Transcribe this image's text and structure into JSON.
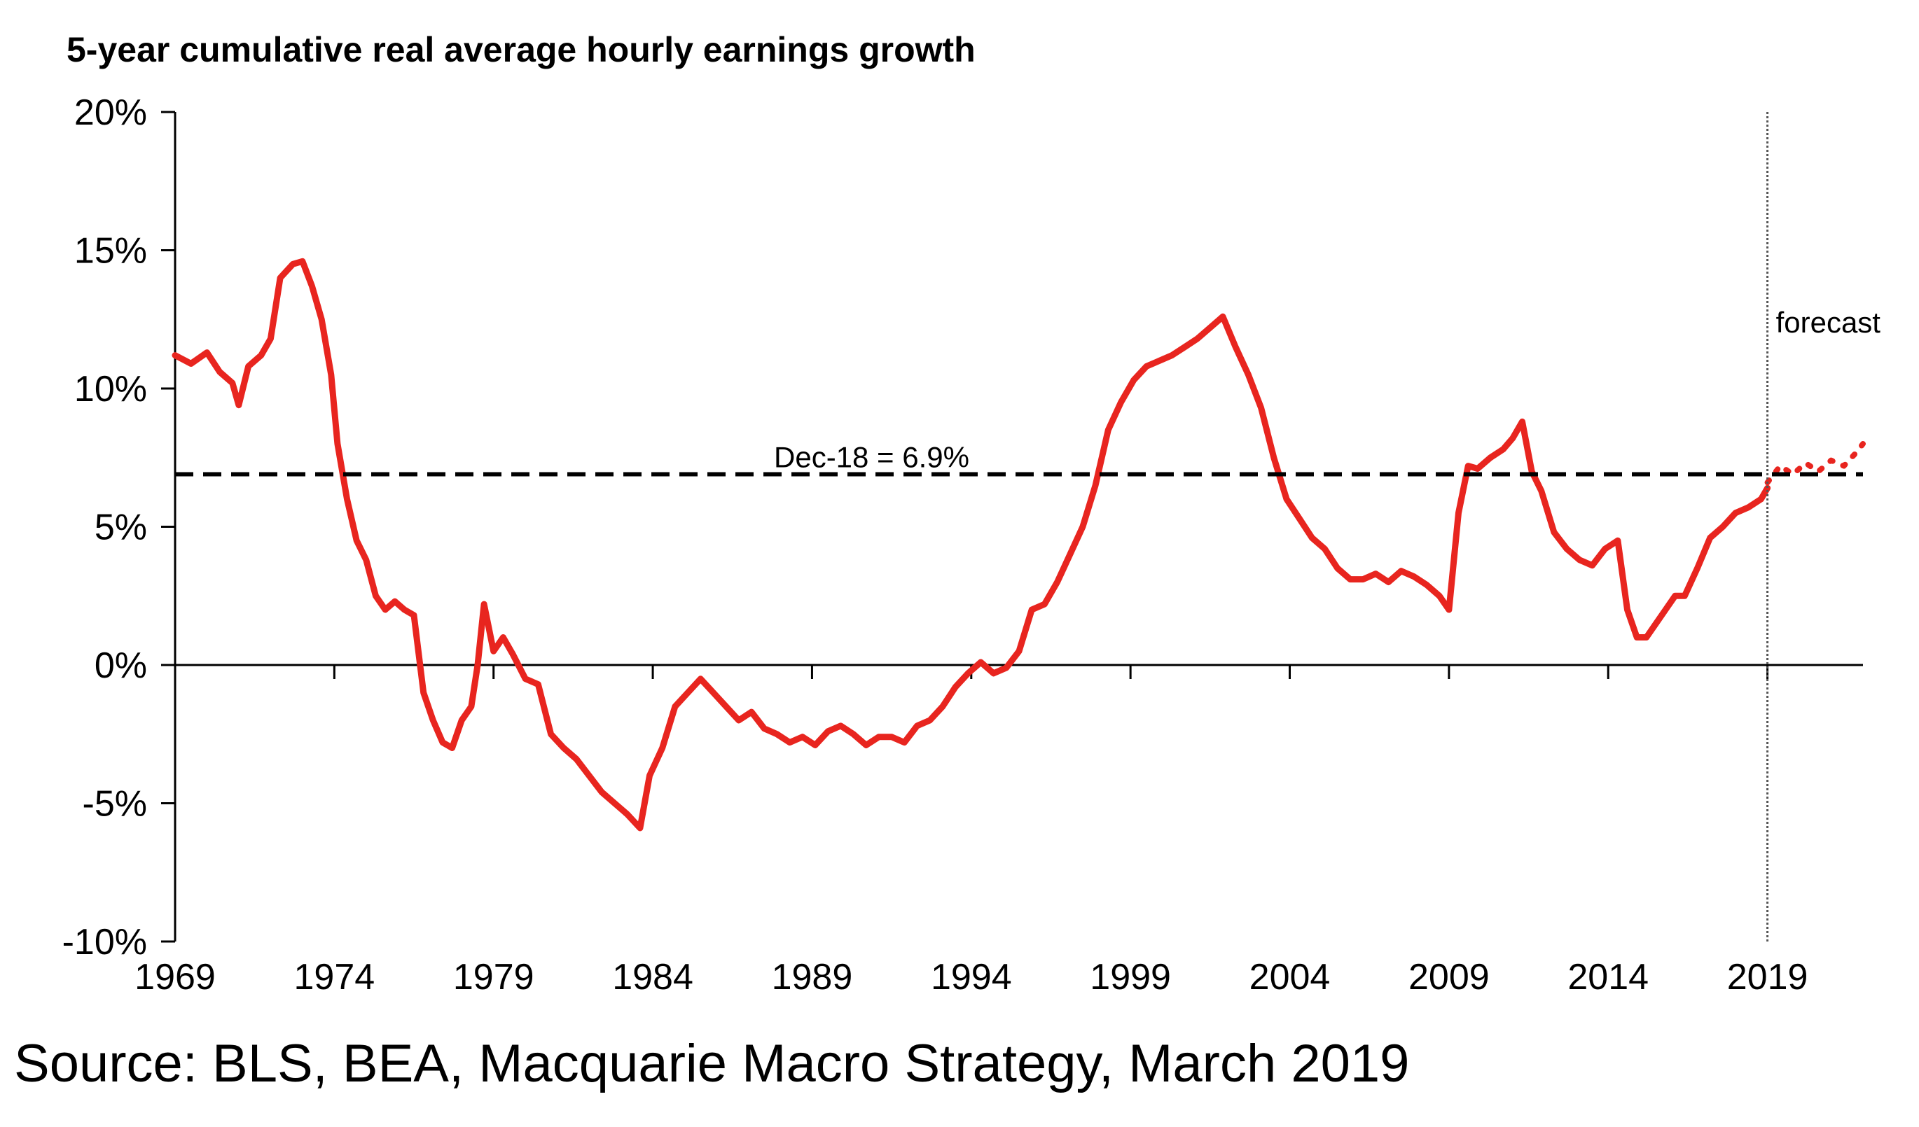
{
  "chart_data": {
    "type": "line",
    "title": "5-year cumulative real average hourly earnings growth",
    "source": "Source: BLS, BEA, Macquarie Macro Strategy, March 2019",
    "xlim": [
      1969,
      2022
    ],
    "ylim": [
      -10,
      20
    ],
    "x_ticks": [
      1969,
      1974,
      1979,
      1984,
      1989,
      1994,
      1999,
      2004,
      2009,
      2014,
      2019
    ],
    "x_tick_labels": [
      "1969",
      "1974",
      "1979",
      "1984",
      "1989",
      "1994",
      "1999",
      "2004",
      "2009",
      "2014",
      "2019"
    ],
    "y_ticks": [
      -10,
      -5,
      0,
      5,
      10,
      15,
      20
    ],
    "y_tick_labels": [
      "-10%",
      "-5%",
      "0%",
      "5%",
      "10%",
      "15%",
      "20%"
    ],
    "reference_line": {
      "value": 6.9,
      "label": "Dec-18 = 6.9%",
      "style": "dashed",
      "color": "#000000"
    },
    "forecast_divider": {
      "x": 2019,
      "label": "forecast"
    },
    "line_color": "#e8251f",
    "series": [
      {
        "values": [
          [
            1969.0,
            11.2
          ],
          [
            1969.5,
            10.9
          ],
          [
            1970.0,
            11.3
          ],
          [
            1970.4,
            10.6
          ],
          [
            1970.8,
            10.2
          ],
          [
            1971.0,
            9.4
          ],
          [
            1971.3,
            10.8
          ],
          [
            1971.7,
            11.2
          ],
          [
            1972.0,
            11.8
          ],
          [
            1972.3,
            14.0
          ],
          [
            1972.7,
            14.5
          ],
          [
            1973.0,
            14.6
          ],
          [
            1973.3,
            13.7
          ],
          [
            1973.6,
            12.5
          ],
          [
            1973.9,
            10.5
          ],
          [
            1974.1,
            8.0
          ],
          [
            1974.4,
            6.0
          ],
          [
            1974.7,
            4.5
          ],
          [
            1975.0,
            3.8
          ],
          [
            1975.3,
            2.5
          ],
          [
            1975.6,
            2.0
          ],
          [
            1975.9,
            2.3
          ],
          [
            1976.2,
            2.0
          ],
          [
            1976.5,
            1.8
          ],
          [
            1976.8,
            -1.0
          ],
          [
            1977.1,
            -2.0
          ],
          [
            1977.4,
            -2.8
          ],
          [
            1977.7,
            -3.0
          ],
          [
            1978.0,
            -2.0
          ],
          [
            1978.3,
            -1.5
          ],
          [
            1978.5,
            0.0
          ],
          [
            1978.7,
            2.2
          ],
          [
            1979.0,
            0.5
          ],
          [
            1979.3,
            1.0
          ],
          [
            1979.6,
            0.4
          ],
          [
            1980.0,
            -0.5
          ],
          [
            1980.4,
            -0.7
          ],
          [
            1980.8,
            -2.5
          ],
          [
            1981.2,
            -3.0
          ],
          [
            1981.6,
            -3.4
          ],
          [
            1982.0,
            -4.0
          ],
          [
            1982.4,
            -4.6
          ],
          [
            1982.8,
            -5.0
          ],
          [
            1983.2,
            -5.4
          ],
          [
            1983.6,
            -5.9
          ],
          [
            1983.9,
            -4.0
          ],
          [
            1984.3,
            -3.0
          ],
          [
            1984.7,
            -1.5
          ],
          [
            1985.1,
            -1.0
          ],
          [
            1985.5,
            -0.5
          ],
          [
            1985.9,
            -1.0
          ],
          [
            1986.3,
            -1.5
          ],
          [
            1986.7,
            -2.0
          ],
          [
            1987.1,
            -1.7
          ],
          [
            1987.5,
            -2.3
          ],
          [
            1987.9,
            -2.5
          ],
          [
            1988.3,
            -2.8
          ],
          [
            1988.7,
            -2.6
          ],
          [
            1989.1,
            -2.9
          ],
          [
            1989.5,
            -2.4
          ],
          [
            1989.9,
            -2.2
          ],
          [
            1990.3,
            -2.5
          ],
          [
            1990.7,
            -2.9
          ],
          [
            1991.1,
            -2.6
          ],
          [
            1991.5,
            -2.6
          ],
          [
            1991.9,
            -2.8
          ],
          [
            1992.3,
            -2.2
          ],
          [
            1992.7,
            -2.0
          ],
          [
            1993.1,
            -1.5
          ],
          [
            1993.5,
            -0.8
          ],
          [
            1993.9,
            -0.3
          ],
          [
            1994.3,
            0.1
          ],
          [
            1994.7,
            -0.3
          ],
          [
            1995.1,
            -0.1
          ],
          [
            1995.5,
            0.5
          ],
          [
            1995.9,
            2.0
          ],
          [
            1996.3,
            2.2
          ],
          [
            1996.7,
            3.0
          ],
          [
            1997.1,
            4.0
          ],
          [
            1997.5,
            5.0
          ],
          [
            1997.9,
            6.5
          ],
          [
            1998.3,
            8.5
          ],
          [
            1998.7,
            9.5
          ],
          [
            1999.1,
            10.3
          ],
          [
            1999.5,
            10.8
          ],
          [
            1999.9,
            11.0
          ],
          [
            2000.3,
            11.2
          ],
          [
            2000.7,
            11.5
          ],
          [
            2001.1,
            11.8
          ],
          [
            2001.5,
            12.2
          ],
          [
            2001.9,
            12.6
          ],
          [
            2002.3,
            11.5
          ],
          [
            2002.7,
            10.5
          ],
          [
            2003.1,
            9.3
          ],
          [
            2003.5,
            7.5
          ],
          [
            2003.9,
            6.0
          ],
          [
            2004.3,
            5.3
          ],
          [
            2004.7,
            4.6
          ],
          [
            2005.1,
            4.2
          ],
          [
            2005.5,
            3.5
          ],
          [
            2005.9,
            3.1
          ],
          [
            2006.3,
            3.1
          ],
          [
            2006.7,
            3.3
          ],
          [
            2007.1,
            3.0
          ],
          [
            2007.5,
            3.4
          ],
          [
            2007.9,
            3.2
          ],
          [
            2008.3,
            2.9
          ],
          [
            2008.7,
            2.5
          ],
          [
            2009.0,
            2.0
          ],
          [
            2009.3,
            5.5
          ],
          [
            2009.6,
            7.2
          ],
          [
            2009.9,
            7.1
          ],
          [
            2010.3,
            7.5
          ],
          [
            2010.7,
            7.8
          ],
          [
            2011.0,
            8.2
          ],
          [
            2011.3,
            8.8
          ],
          [
            2011.6,
            7.0
          ],
          [
            2011.9,
            6.3
          ],
          [
            2012.3,
            4.8
          ],
          [
            2012.7,
            4.2
          ],
          [
            2013.1,
            3.8
          ],
          [
            2013.5,
            3.6
          ],
          [
            2013.9,
            4.2
          ],
          [
            2014.3,
            4.5
          ],
          [
            2014.6,
            2.0
          ],
          [
            2014.9,
            1.0
          ],
          [
            2015.2,
            1.0
          ],
          [
            2015.5,
            1.5
          ],
          [
            2015.8,
            2.0
          ],
          [
            2016.1,
            2.5
          ],
          [
            2016.4,
            2.5
          ],
          [
            2016.8,
            3.5
          ],
          [
            2017.2,
            4.6
          ],
          [
            2017.6,
            5.0
          ],
          [
            2018.0,
            5.5
          ],
          [
            2018.4,
            5.7
          ],
          [
            2018.8,
            6.0
          ],
          [
            2019.0,
            6.4
          ]
        ]
      },
      {
        "style": "dotted",
        "values": [
          [
            2019.0,
            6.6
          ],
          [
            2019.4,
            7.2
          ],
          [
            2019.8,
            6.9
          ],
          [
            2020.2,
            7.3
          ],
          [
            2020.6,
            7.0
          ],
          [
            2021.0,
            7.4
          ],
          [
            2021.4,
            7.2
          ],
          [
            2021.8,
            7.7
          ],
          [
            2022.0,
            8.0
          ]
        ]
      }
    ]
  }
}
